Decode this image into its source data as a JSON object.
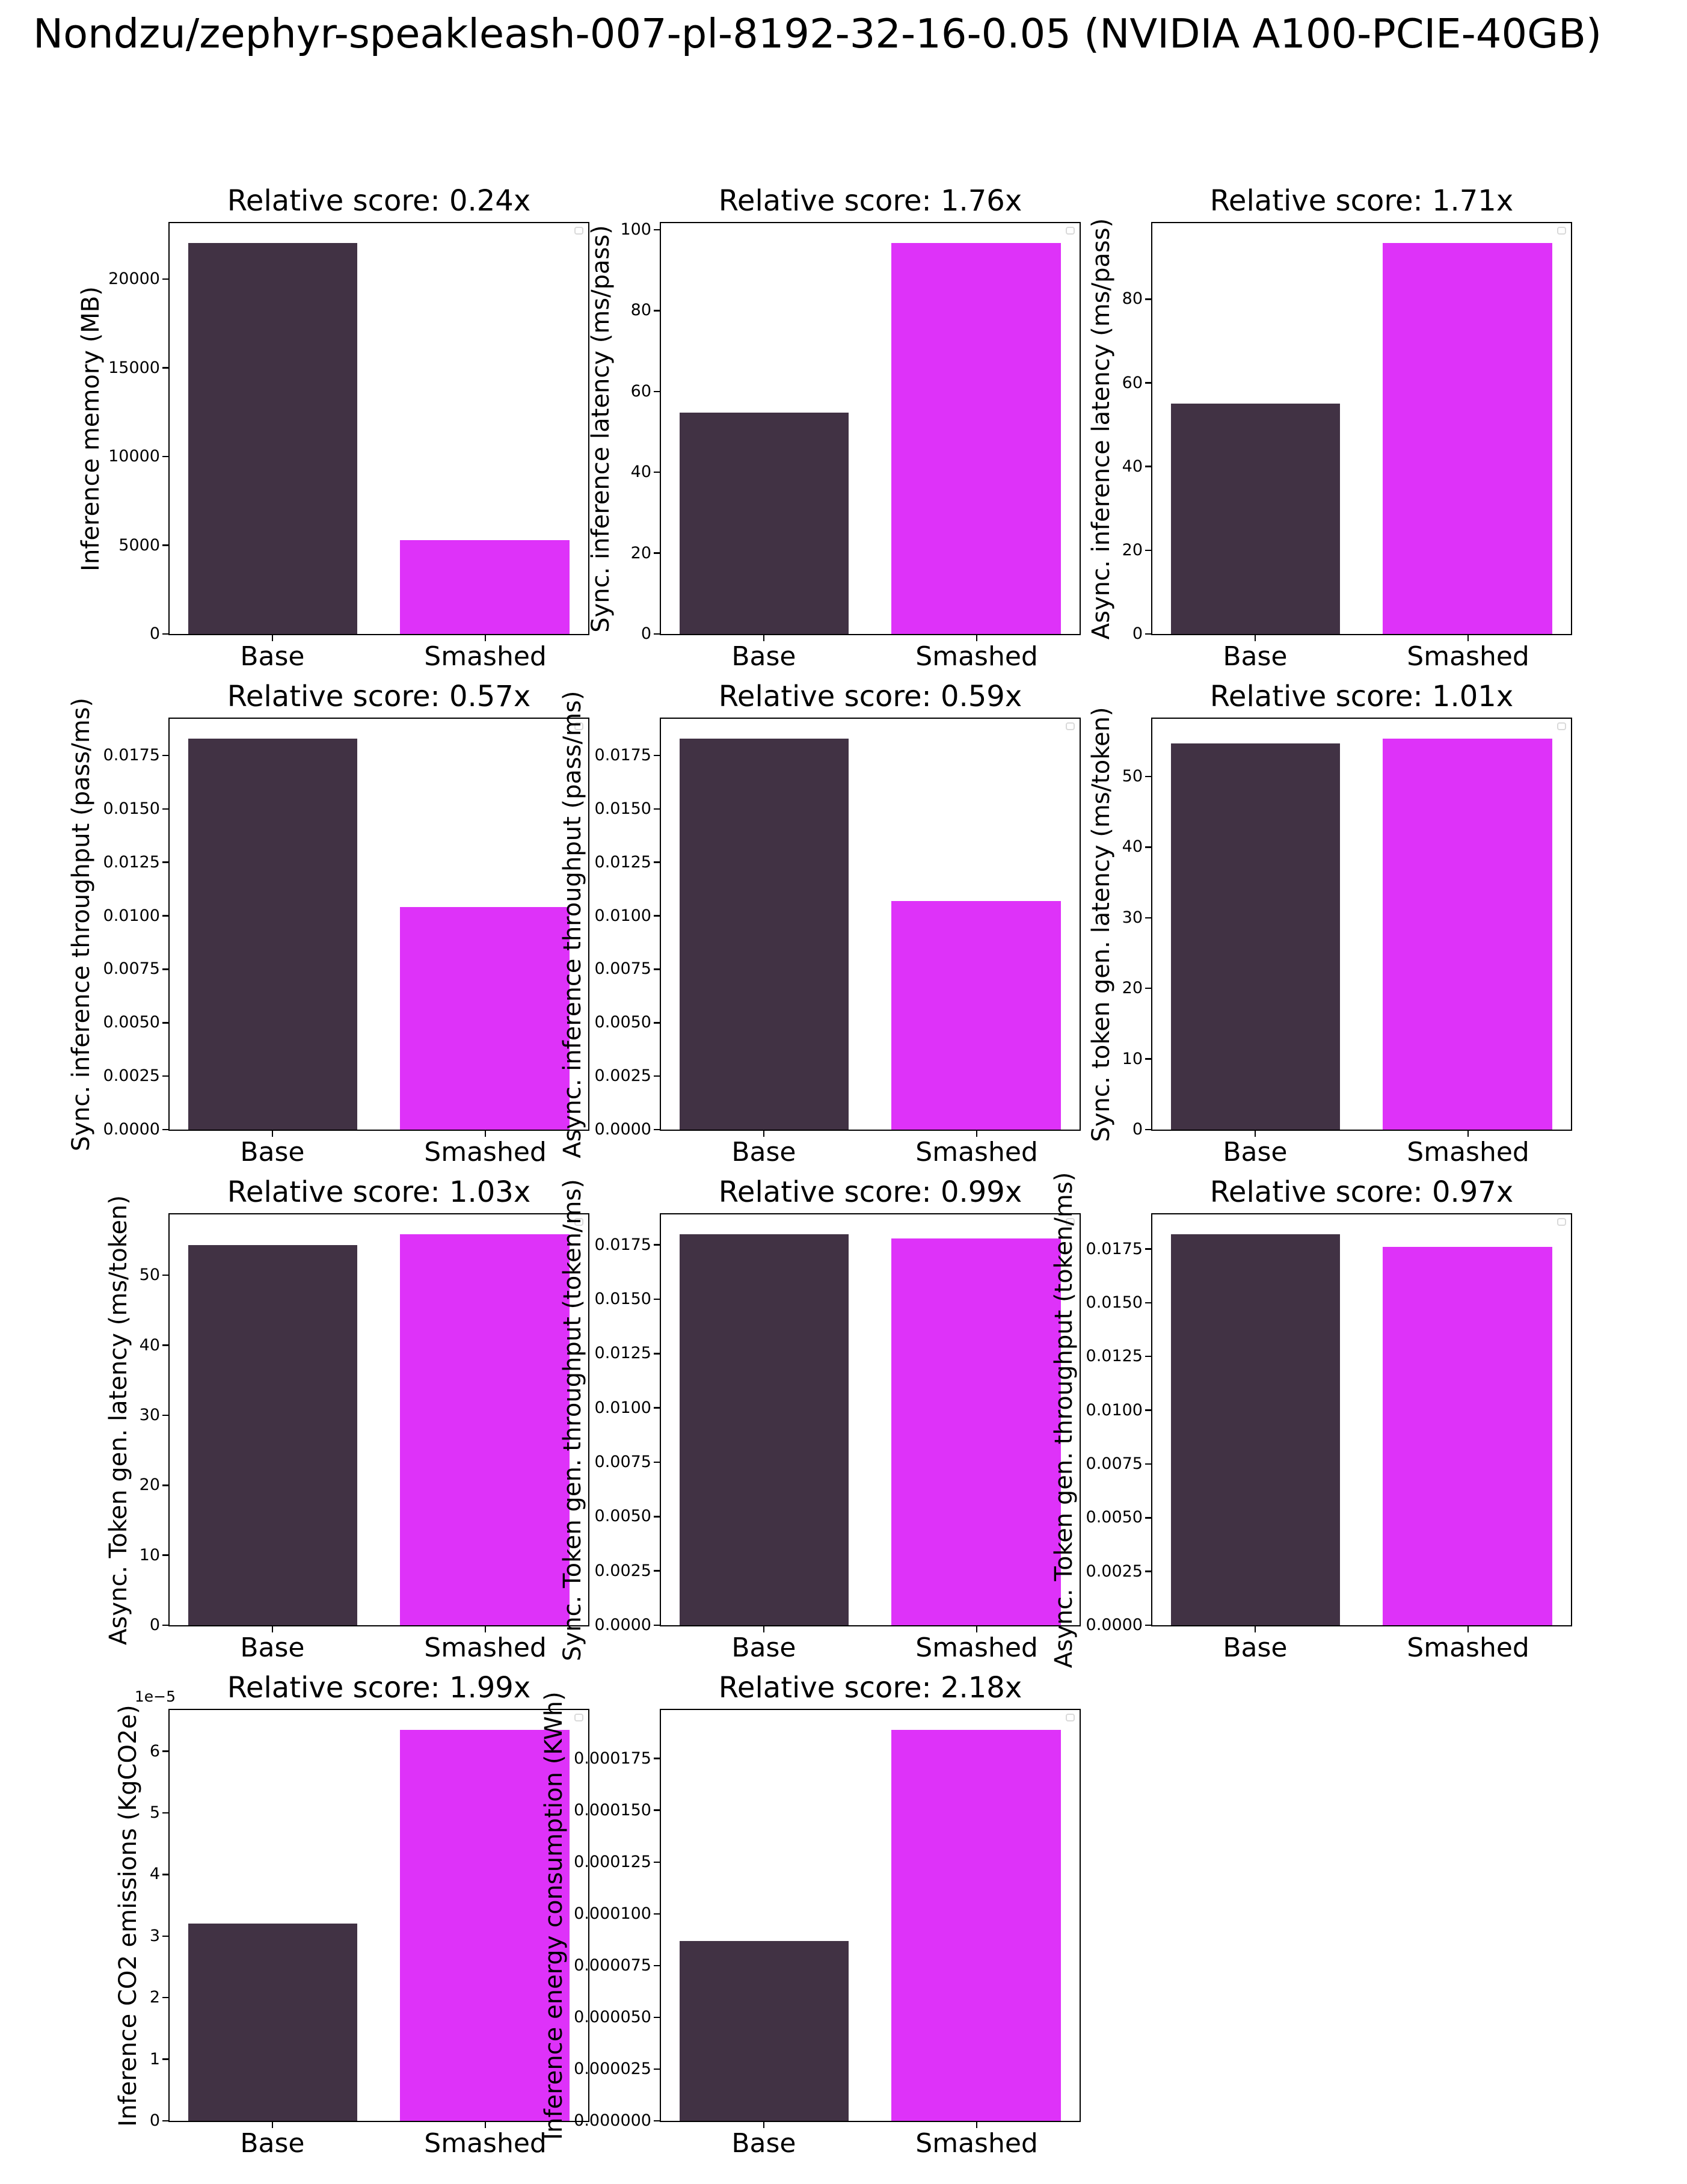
{
  "page": {
    "title": "Nondzu/zephyr-speakleash-007-pl-8192-32-16-0.05 (NVIDIA A100-PCIE-40GB)"
  },
  "colors": {
    "base_bar": "#413244",
    "smashed_bar": "#de32f9",
    "spine": "#000000",
    "legend_border": "#d9d9d9"
  },
  "categories": [
    "Base",
    "Smashed"
  ],
  "chart_data": [
    {
      "type": "bar",
      "row": 0,
      "col": 0,
      "title": "Relative score: 0.24x",
      "ylabel": "Inference memory (MB)",
      "categories": [
        "Base",
        "Smashed"
      ],
      "values": [
        22050,
        5300
      ],
      "ymax": 23153,
      "ytick_values": [
        0,
        5000,
        10000,
        15000,
        20000
      ],
      "ytick_labels": [
        "0",
        "5000",
        "10000",
        "15000",
        "20000"
      ],
      "offset_label": "",
      "legend_visible": true,
      "grid": false
    },
    {
      "type": "bar",
      "row": 0,
      "col": 1,
      "title": "Relative score: 1.76x",
      "ylabel": "Sync. inference latency (ms/pass)",
      "categories": [
        "Base",
        "Smashed"
      ],
      "values": [
        54.7,
        96.8
      ],
      "ymax": 101.64,
      "ytick_values": [
        0,
        20,
        40,
        60,
        80,
        100
      ],
      "ytick_labels": [
        "0",
        "20",
        "40",
        "60",
        "80",
        "100"
      ],
      "offset_label": "",
      "legend_visible": true,
      "grid": false
    },
    {
      "type": "bar",
      "row": 0,
      "col": 2,
      "title": "Relative score: 1.71x",
      "ylabel": "Async. inference latency (ms/pass)",
      "categories": [
        "Base",
        "Smashed"
      ],
      "values": [
        55.0,
        93.5
      ],
      "ymax": 98.18,
      "ytick_values": [
        0,
        20,
        40,
        60,
        80
      ],
      "ytick_labels": [
        "0",
        "20",
        "40",
        "60",
        "80"
      ],
      "offset_label": "",
      "legend_visible": true,
      "grid": false
    },
    {
      "type": "bar",
      "row": 1,
      "col": 0,
      "title": "Relative score: 0.57x",
      "ylabel": "Sync. inference throughput (pass/ms)",
      "categories": [
        "Base",
        "Smashed"
      ],
      "values": [
        0.0183,
        0.0104
      ],
      "ymax": 0.019215,
      "ytick_values": [
        0,
        0.0025,
        0.005,
        0.0075,
        0.01,
        0.0125,
        0.015,
        0.0175
      ],
      "ytick_labels": [
        "0.0000",
        "0.0025",
        "0.0050",
        "0.0075",
        "0.0100",
        "0.0125",
        "0.0150",
        "0.0175"
      ],
      "offset_label": "",
      "legend_visible": true,
      "grid": false
    },
    {
      "type": "bar",
      "row": 1,
      "col": 1,
      "title": "Relative score: 0.59x",
      "ylabel": "Async. inference throughput (pass/ms)",
      "categories": [
        "Base",
        "Smashed"
      ],
      "values": [
        0.0183,
        0.0107
      ],
      "ymax": 0.019215,
      "ytick_values": [
        0,
        0.0025,
        0.005,
        0.0075,
        0.01,
        0.0125,
        0.015,
        0.0175
      ],
      "ytick_labels": [
        "0.0000",
        "0.0025",
        "0.0050",
        "0.0075",
        "0.0100",
        "0.0125",
        "0.0150",
        "0.0175"
      ],
      "offset_label": "",
      "legend_visible": true,
      "grid": false
    },
    {
      "type": "bar",
      "row": 1,
      "col": 2,
      "title": "Relative score: 1.01x",
      "ylabel": "Sync. token gen. latency (ms/token)",
      "categories": [
        "Base",
        "Smashed"
      ],
      "values": [
        54.7,
        55.4
      ],
      "ymax": 58.17,
      "ytick_values": [
        0,
        10,
        20,
        30,
        40,
        50
      ],
      "ytick_labels": [
        "0",
        "10",
        "20",
        "30",
        "40",
        "50"
      ],
      "offset_label": "",
      "legend_visible": true,
      "grid": false
    },
    {
      "type": "bar",
      "row": 2,
      "col": 0,
      "title": "Relative score: 1.03x",
      "ylabel": "Async. Token gen. latency (ms/token)",
      "categories": [
        "Base",
        "Smashed"
      ],
      "values": [
        54.3,
        55.9
      ],
      "ymax": 58.7,
      "ytick_values": [
        0,
        10,
        20,
        30,
        40,
        50
      ],
      "ytick_labels": [
        "0",
        "10",
        "20",
        "30",
        "40",
        "50"
      ],
      "offset_label": "",
      "legend_visible": true,
      "grid": false
    },
    {
      "type": "bar",
      "row": 2,
      "col": 1,
      "title": "Relative score: 0.99x",
      "ylabel": "Sync. Token gen. throughput (token/ms)",
      "categories": [
        "Base",
        "Smashed"
      ],
      "values": [
        0.018,
        0.0178
      ],
      "ymax": 0.0189,
      "ytick_values": [
        0,
        0.0025,
        0.005,
        0.0075,
        0.01,
        0.0125,
        0.015,
        0.0175
      ],
      "ytick_labels": [
        "0.0000",
        "0.0025",
        "0.0050",
        "0.0075",
        "0.0100",
        "0.0125",
        "0.0150",
        "0.0175"
      ],
      "offset_label": "",
      "legend_visible": true,
      "grid": false
    },
    {
      "type": "bar",
      "row": 2,
      "col": 2,
      "title": "Relative score: 0.97x",
      "ylabel": "Async. Token gen. throughput (token/ms)",
      "categories": [
        "Base",
        "Smashed"
      ],
      "values": [
        0.0182,
        0.0176
      ],
      "ymax": 0.01911,
      "ytick_values": [
        0,
        0.0025,
        0.005,
        0.0075,
        0.01,
        0.0125,
        0.015,
        0.0175
      ],
      "ytick_labels": [
        "0.0000",
        "0.0025",
        "0.0050",
        "0.0075",
        "0.0100",
        "0.0125",
        "0.0150",
        "0.0175"
      ],
      "offset_label": "",
      "legend_visible": true,
      "grid": false
    },
    {
      "type": "bar",
      "row": 3,
      "col": 0,
      "title": "Relative score: 1.99x",
      "ylabel": "Inference CO2 emissions (KgCO2e)",
      "categories": [
        "Base",
        "Smashed"
      ],
      "values": [
        3.2e-05,
        6.35e-05
      ],
      "ymax": 6.67e-05,
      "ytick_values": [
        0,
        1e-05,
        2e-05,
        3e-05,
        4e-05,
        5e-05,
        6e-05
      ],
      "ytick_labels": [
        "0",
        "1",
        "2",
        "3",
        "4",
        "5",
        "6"
      ],
      "offset_label": "1e−5",
      "legend_visible": true,
      "grid": false
    },
    {
      "type": "bar",
      "row": 3,
      "col": 1,
      "title": "Relative score: 2.18x",
      "ylabel": "Inference energy consumption (KWh)",
      "categories": [
        "Base",
        "Smashed"
      ],
      "values": [
        8.7e-05,
        0.000189
      ],
      "ymax": 0.00019845,
      "ytick_values": [
        0,
        2.5e-05,
        5e-05,
        7.5e-05,
        0.0001,
        0.000125,
        0.00015,
        0.000175
      ],
      "ytick_labels": [
        "0.000000",
        "0.000025",
        "0.000050",
        "0.000075",
        "0.000100",
        "0.000125",
        "0.000150",
        "0.000175"
      ],
      "offset_label": "",
      "legend_visible": true,
      "grid": false
    }
  ]
}
